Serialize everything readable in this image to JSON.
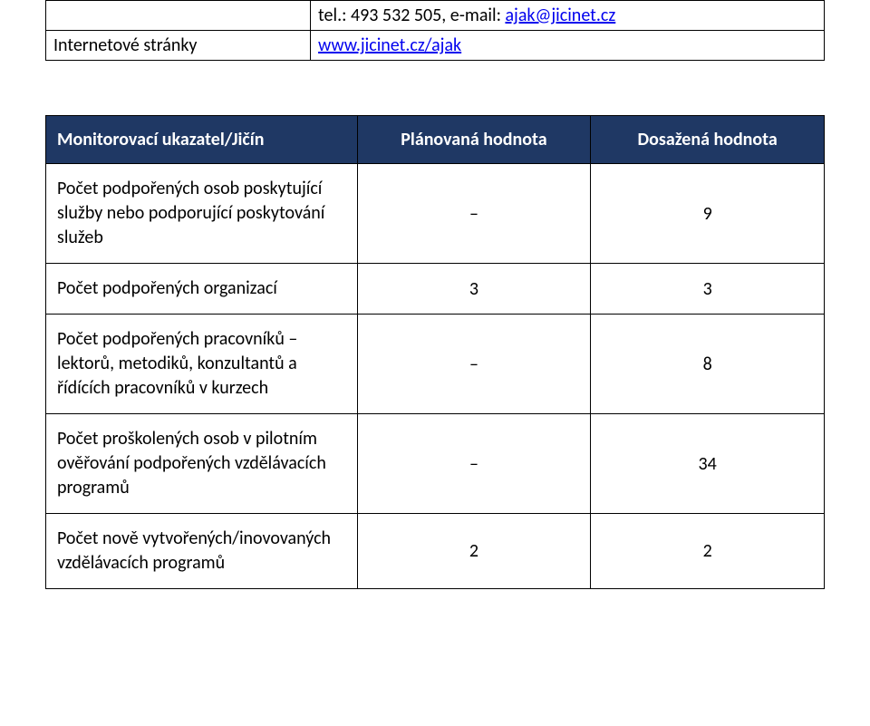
{
  "contact": {
    "tel_label": "tel.: 493 532 505, e-mail: ",
    "email": "ajak@jicinet.cz",
    "website_label": "Internetové stránky",
    "website_link": "www.jicinet.cz/ajak"
  },
  "monitor": {
    "header": {
      "col1": "Monitorovací ukazatel/Jičín",
      "col2": "Plánovaná hodnota",
      "col3": "Dosažená hodnota"
    },
    "rows": [
      {
        "label": "Počet podpořených osob poskytující služby nebo podporující poskytování služeb",
        "planned": "–",
        "achieved": "9"
      },
      {
        "label": "Počet podpořených organizací",
        "planned": "3",
        "achieved": "3"
      },
      {
        "label": "Počet podpořených pracovníků –lektorů, metodiků, konzultantů a řídících pracovníků v kurzech",
        "planned": "–",
        "achieved": "8"
      },
      {
        "label": "Počet proškolených osob v pilotním ověřování podpořených vzdělávacích programů",
        "planned": "–",
        "achieved": "34"
      },
      {
        "label": "Počet nově vytvořených/inovovaných vzdělávacích programů",
        "planned": "2",
        "achieved": "2"
      }
    ]
  },
  "colors": {
    "header_bg": "#1f3864",
    "header_fg": "#ffffff",
    "link": "#0000ee",
    "border": "#000000",
    "page_bg": "#ffffff",
    "text": "#000000"
  },
  "typography": {
    "body_fontsize_pt": 15,
    "font_family": "Calibri"
  }
}
